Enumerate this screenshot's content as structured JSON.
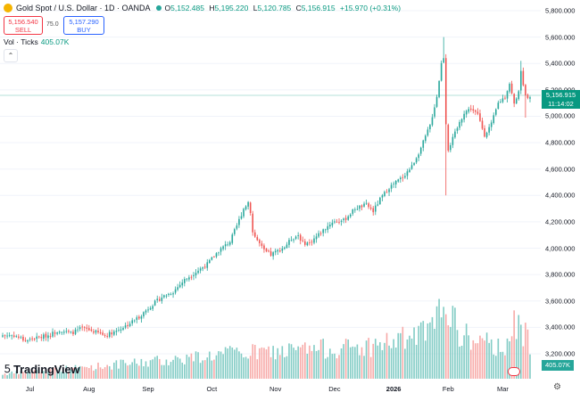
{
  "header": {
    "title": "Gold Spot / U.S. Dollar · 1D · OANDA",
    "open_label": "O",
    "open": "5,152.485",
    "high_label": "H",
    "high": "5,195.220",
    "low_label": "L",
    "low": "5,120.785",
    "close_label": "C",
    "close": "5,156.915",
    "change": "+15.970 (+0.31%)"
  },
  "trade": {
    "sell_price": "5,156.540",
    "sell_label": "SELL",
    "spread": "75.0",
    "buy_price": "5,157.290",
    "buy_label": "BUY"
  },
  "volume_legend": {
    "label": "Vol · Ticks",
    "value": "405.07K"
  },
  "price_label": {
    "price": "5,156.915",
    "countdown": "11:14:02"
  },
  "volume_axis_label": "405.07K",
  "logo_text": "TradingView",
  "colors": {
    "up": "#26a69a",
    "down": "#ef5350",
    "vol_up": "#80cbc4",
    "vol_down": "#f7a9a7",
    "accent": "#089981"
  },
  "icons": [
    "gold-coin-icon",
    "chevron-down-icon",
    "settings-gear-icon",
    "tradingview-logo-icon",
    "flag-icon"
  ],
  "chart_data": {
    "type": "candlestick",
    "title": "Gold Spot / U.S. Dollar · 1D · OANDA",
    "ylim": [
      3080,
      5900
    ],
    "y_ticks": [
      "5,800.000",
      "5,600.000",
      "5,400.000",
      "5,200.000",
      "5,000.000",
      "4,800.000",
      "4,600.000",
      "4,400.000",
      "4,200.000",
      "4,000.000",
      "3,800.000",
      "3,600.000",
      "3,400.000",
      "3,200.000"
    ],
    "y_tick_values": [
      5800,
      5600,
      5400,
      5200,
      5000,
      4800,
      4600,
      4400,
      4200,
      4000,
      3800,
      3600,
      3400,
      3200
    ],
    "x_labels": [
      "Jul",
      "Aug",
      "Sep",
      "Oct",
      "Nov",
      "Dec",
      "2026",
      "Feb",
      "Mar"
    ],
    "x_label_bold": [
      false,
      false,
      false,
      false,
      false,
      false,
      true,
      false,
      false
    ],
    "x_label_index": [
      12,
      38,
      64,
      92,
      120,
      146,
      172,
      196,
      220
    ],
    "price_anchors": [
      [
        0,
        3340
      ],
      [
        5,
        3340
      ],
      [
        10,
        3300
      ],
      [
        15,
        3320
      ],
      [
        20,
        3340
      ],
      [
        25,
        3380
      ],
      [
        30,
        3355
      ],
      [
        35,
        3395
      ],
      [
        40,
        3370
      ],
      [
        45,
        3340
      ],
      [
        50,
        3375
      ],
      [
        55,
        3420
      ],
      [
        60,
        3480
      ],
      [
        65,
        3560
      ],
      [
        70,
        3630
      ],
      [
        75,
        3670
      ],
      [
        80,
        3760
      ],
      [
        85,
        3820
      ],
      [
        90,
        3880
      ],
      [
        95,
        3980
      ],
      [
        100,
        4050
      ],
      [
        103,
        4170
      ],
      [
        106,
        4300
      ],
      [
        108,
        4350
      ],
      [
        109,
        4280
      ],
      [
        110,
        4120
      ],
      [
        112,
        4060
      ],
      [
        115,
        3980
      ],
      [
        118,
        3950
      ],
      [
        121,
        3980
      ],
      [
        124,
        4010
      ],
      [
        127,
        4070
      ],
      [
        130,
        4100
      ],
      [
        132,
        4040
      ],
      [
        135,
        4040
      ],
      [
        140,
        4120
      ],
      [
        145,
        4200
      ],
      [
        150,
        4210
      ],
      [
        155,
        4300
      ],
      [
        160,
        4330
      ],
      [
        163,
        4280
      ],
      [
        166,
        4370
      ],
      [
        170,
        4460
      ],
      [
        173,
        4500
      ],
      [
        176,
        4540
      ],
      [
        180,
        4620
      ],
      [
        184,
        4760
      ],
      [
        188,
        4930
      ],
      [
        191,
        5150
      ],
      [
        193,
        5400
      ],
      [
        194,
        5450
      ],
      [
        195,
        4950
      ],
      [
        196,
        4750
      ],
      [
        198,
        4830
      ],
      [
        201,
        4950
      ],
      [
        203,
        5030
      ],
      [
        206,
        5060
      ],
      [
        209,
        5010
      ],
      [
        212,
        4860
      ],
      [
        215,
        4940
      ],
      [
        218,
        5100
      ],
      [
        221,
        5150
      ],
      [
        223,
        5250
      ],
      [
        225,
        5090
      ],
      [
        227,
        5200
      ],
      [
        228,
        5330
      ],
      [
        229,
        5250
      ],
      [
        230,
        5150
      ],
      [
        232,
        5157
      ]
    ],
    "volume_anchors": [
      [
        0,
        0.05
      ],
      [
        20,
        0.09
      ],
      [
        40,
        0.13
      ],
      [
        60,
        0.17
      ],
      [
        80,
        0.22
      ],
      [
        100,
        0.27
      ],
      [
        120,
        0.29
      ],
      [
        140,
        0.32
      ],
      [
        160,
        0.34
      ],
      [
        180,
        0.44
      ],
      [
        190,
        0.52
      ],
      [
        193,
        0.78
      ],
      [
        195,
        0.95
      ],
      [
        197,
        0.7
      ],
      [
        200,
        0.5
      ],
      [
        210,
        0.38
      ],
      [
        220,
        0.34
      ],
      [
        225,
        0.55
      ],
      [
        230,
        0.48
      ],
      [
        232,
        0.4
      ]
    ],
    "volume_max": "405.07K",
    "last_price": 5156.915
  }
}
